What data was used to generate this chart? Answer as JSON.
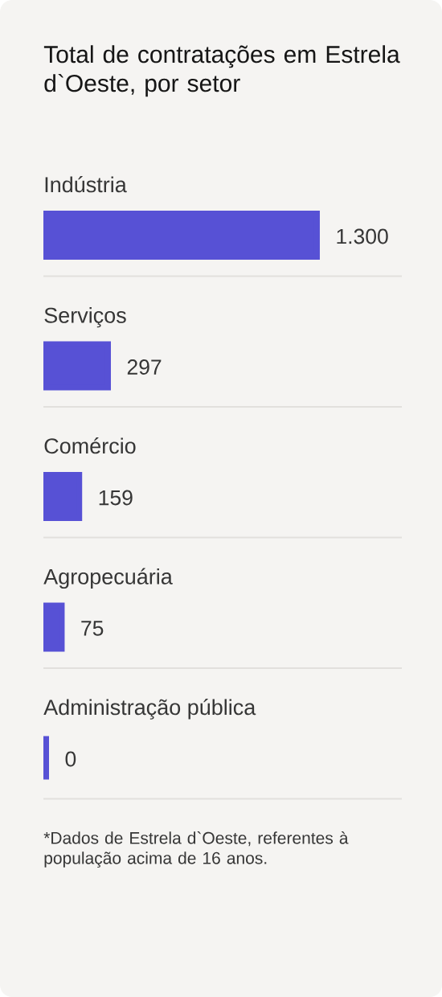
{
  "chart_data": {
    "type": "bar",
    "orientation": "horizontal",
    "title": "Total de contratações em Estrela d`Oeste, por setor",
    "categories": [
      "Indústria",
      "Serviços",
      "Comércio",
      "Agropecuária",
      "Administração pública"
    ],
    "values": [
      1300,
      297,
      159,
      75,
      0
    ],
    "color": "#5751d5",
    "value_labels": [
      "1.300",
      "297",
      "159",
      "75",
      "0"
    ],
    "annotations": [
      "*Dados de Estrela d`Oeste, referentes à população acima de 16 anos."
    ]
  }
}
